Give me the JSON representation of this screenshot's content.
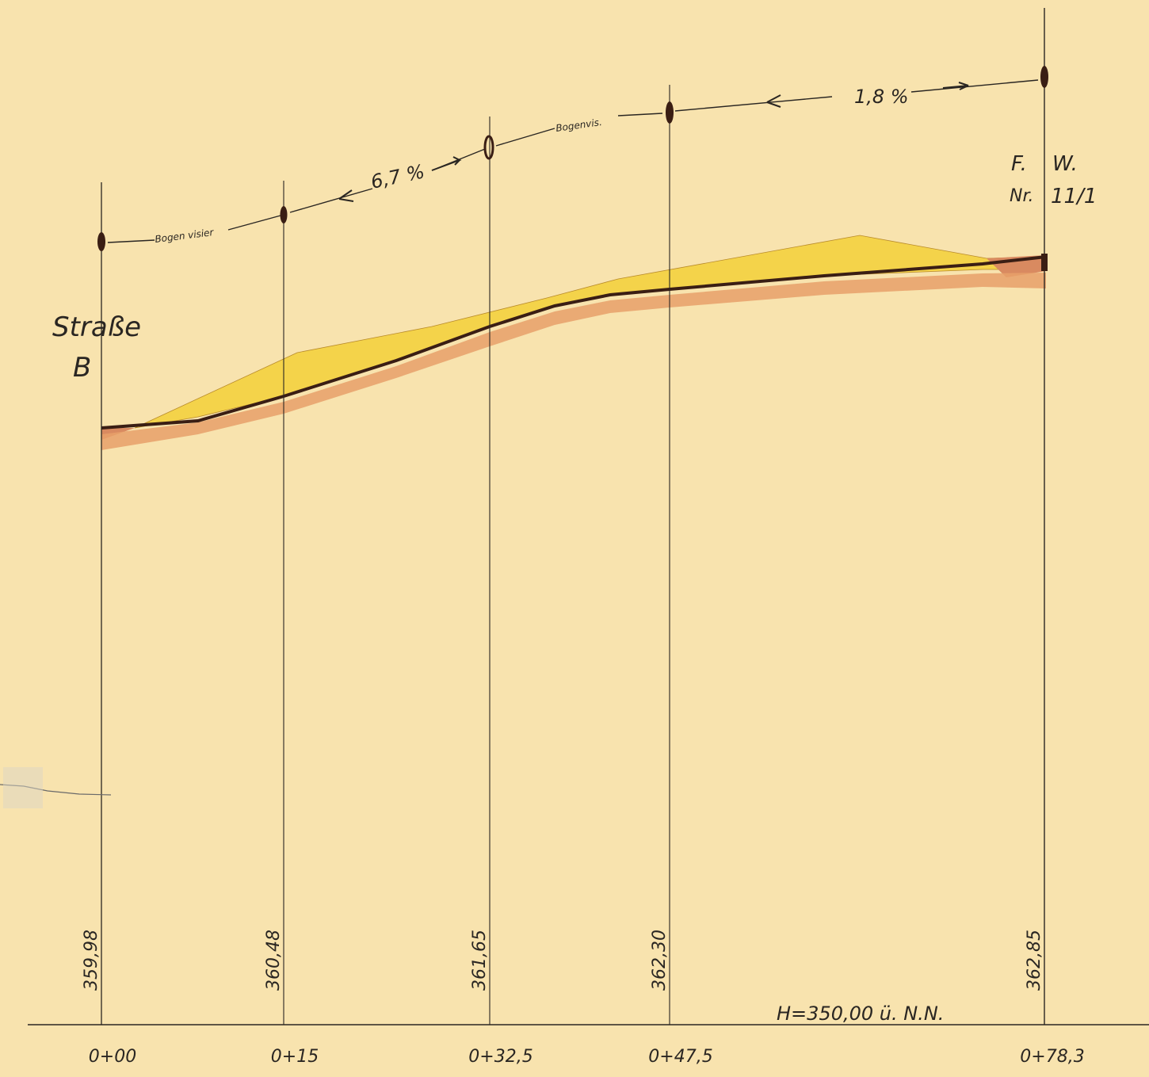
{
  "datum_label": "H=350,00 ü. N.N.",
  "road_label": {
    "line1": "Straße",
    "line2": "B"
  },
  "well_label": {
    "line1a": "F.",
    "line1b": "W.",
    "line2a": "Nr.",
    "line2b": "11/1"
  },
  "chart_data": {
    "type": "line",
    "stations": [
      "0+00",
      "0+15",
      "0+32,5",
      "0+47,5",
      "0+78,3"
    ],
    "elevations": [
      "359,98",
      "360,48",
      "361,65",
      "362,30",
      "362,85"
    ],
    "gradients": [
      {
        "label": "6,7 %"
      },
      {
        "label": "1,8 %"
      }
    ],
    "sight_labels": [
      "Bogen visier",
      "Bogenvis."
    ],
    "colors": {
      "paper": "#f8e3ae",
      "fill_yellow": "#f4d34a",
      "cut_red": "#d98a60",
      "band_orange": "#e7a06a",
      "ink": "#2a2622"
    }
  }
}
